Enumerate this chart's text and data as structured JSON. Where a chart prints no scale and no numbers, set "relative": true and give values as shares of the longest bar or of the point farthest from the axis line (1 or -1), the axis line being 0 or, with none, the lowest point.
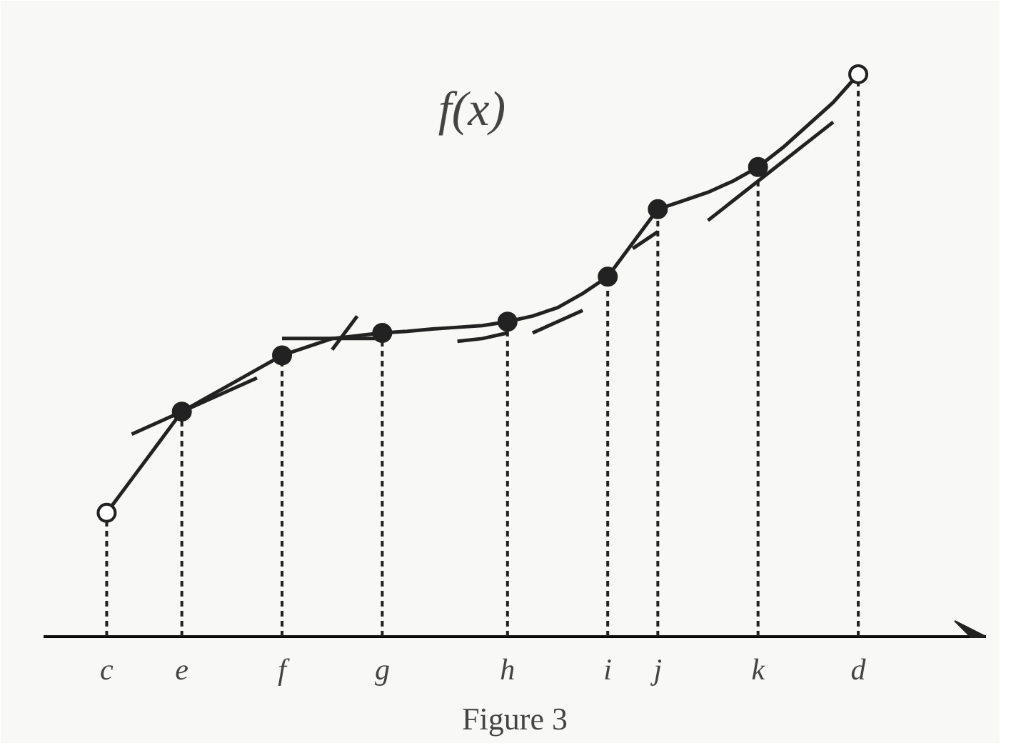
{
  "chart_data": {
    "type": "line",
    "title": "Figure 3",
    "relative": true,
    "grid": false,
    "categories": [
      "c",
      null,
      null,
      "e",
      null,
      null,
      null,
      "f",
      null,
      null,
      null,
      "g",
      null,
      null,
      null,
      null,
      "h",
      null,
      null,
      null,
      "i",
      null,
      "j",
      null,
      null,
      null,
      "k",
      null,
      null,
      null,
      "d"
    ],
    "annotations": [
      "f(x)"
    ],
    "series": [
      {
        "color": "#222222",
        "line_style": "solid",
        "values": [
          0.22,
          0.28,
          0.34,
          0.4,
          0.425,
          0.45,
          0.475,
          0.5,
          0.515,
          0.53,
          0.535,
          0.54,
          0.543,
          0.547,
          0.55,
          0.553,
          0.56,
          0.57,
          0.585,
          0.61,
          0.64,
          0.7,
          0.76,
          0.775,
          0.79,
          0.81,
          0.835,
          0.87,
          0.91,
          0.95,
          1.0
        ]
      },
      {
        "type": "lollipop",
        "color": "#222222",
        "marker": "circle",
        "line_style": "dashed",
        "values": [
          null,
          null,
          null,
          0.4,
          null,
          null,
          null,
          0.5,
          null,
          null,
          null,
          0.54,
          null,
          null,
          null,
          null,
          0.56,
          null,
          null,
          null,
          0.64,
          null,
          0.76,
          null,
          null,
          null,
          0.835,
          null,
          null,
          null,
          null
        ]
      },
      {
        "type": "lollipop",
        "color": "#ffffff",
        "marker": "circle",
        "line_style": "dashed",
        "values": [
          0.22,
          null,
          null,
          null,
          null,
          null,
          null,
          null,
          null,
          null,
          null,
          null,
          null,
          null,
          null,
          null,
          null,
          null,
          null,
          null,
          null,
          null,
          null,
          null,
          null,
          null,
          null,
          null,
          null,
          null,
          1.0
        ]
      },
      {
        "color": "#222222",
        "line_style": "solid",
        "values": [
          null,
          0.36,
          0.38,
          0.4,
          0.42,
          0.44,
          0.46,
          null,
          null,
          null,
          null,
          null,
          null,
          null,
          null,
          null,
          null,
          null,
          null,
          null,
          null,
          null,
          null,
          null,
          null,
          null,
          null,
          null,
          null,
          null,
          null
        ]
      },
      {
        "color": "#222222",
        "line_style": "solid",
        "values": [
          null,
          null,
          null,
          null,
          null,
          null,
          null,
          0.53,
          0.53,
          0.53,
          0.53,
          0.53,
          null,
          null,
          null,
          null,
          null,
          null,
          null,
          null,
          null,
          null,
          null,
          null,
          null,
          null,
          null,
          null,
          null,
          null,
          null
        ]
      },
      {
        "color": "#222222",
        "line_style": "solid",
        "values": [
          null,
          null,
          null,
          null,
          null,
          null,
          null,
          null,
          null,
          0.51,
          0.57,
          null,
          null,
          null,
          null,
          null,
          null,
          null,
          null,
          null,
          null,
          null,
          null,
          null,
          null,
          null,
          null,
          null,
          null,
          null,
          null
        ]
      },
      {
        "color": "#222222",
        "line_style": "solid",
        "values": [
          null,
          null,
          null,
          null,
          null,
          null,
          null,
          null,
          null,
          null,
          null,
          null,
          null,
          null,
          0.525,
          0.53,
          0.54,
          null,
          null,
          null,
          null,
          null,
          null,
          null,
          null,
          null,
          null,
          null,
          null,
          null,
          null
        ]
      },
      {
        "color": "#222222",
        "line_style": "solid",
        "values": [
          null,
          null,
          null,
          null,
          null,
          null,
          null,
          null,
          null,
          null,
          null,
          null,
          null,
          null,
          null,
          null,
          null,
          0.54,
          0.56,
          0.58,
          null,
          null,
          null,
          null,
          null,
          null,
          null,
          null,
          null,
          null,
          null
        ]
      },
      {
        "color": "#222222",
        "line_style": "solid",
        "values": [
          null,
          null,
          null,
          null,
          null,
          null,
          null,
          null,
          null,
          null,
          null,
          null,
          null,
          null,
          null,
          null,
          null,
          null,
          null,
          null,
          null,
          0.69,
          0.72,
          null,
          null,
          null,
          null,
          null,
          null,
          null,
          null
        ]
      },
      {
        "color": "#222222",
        "line_style": "solid",
        "values": [
          null,
          null,
          null,
          null,
          null,
          null,
          null,
          null,
          null,
          null,
          null,
          null,
          null,
          null,
          null,
          null,
          null,
          null,
          null,
          null,
          null,
          null,
          null,
          null,
          0.74,
          0.775,
          0.81,
          0.845,
          0.88,
          0.915,
          null
        ]
      }
    ]
  }
}
